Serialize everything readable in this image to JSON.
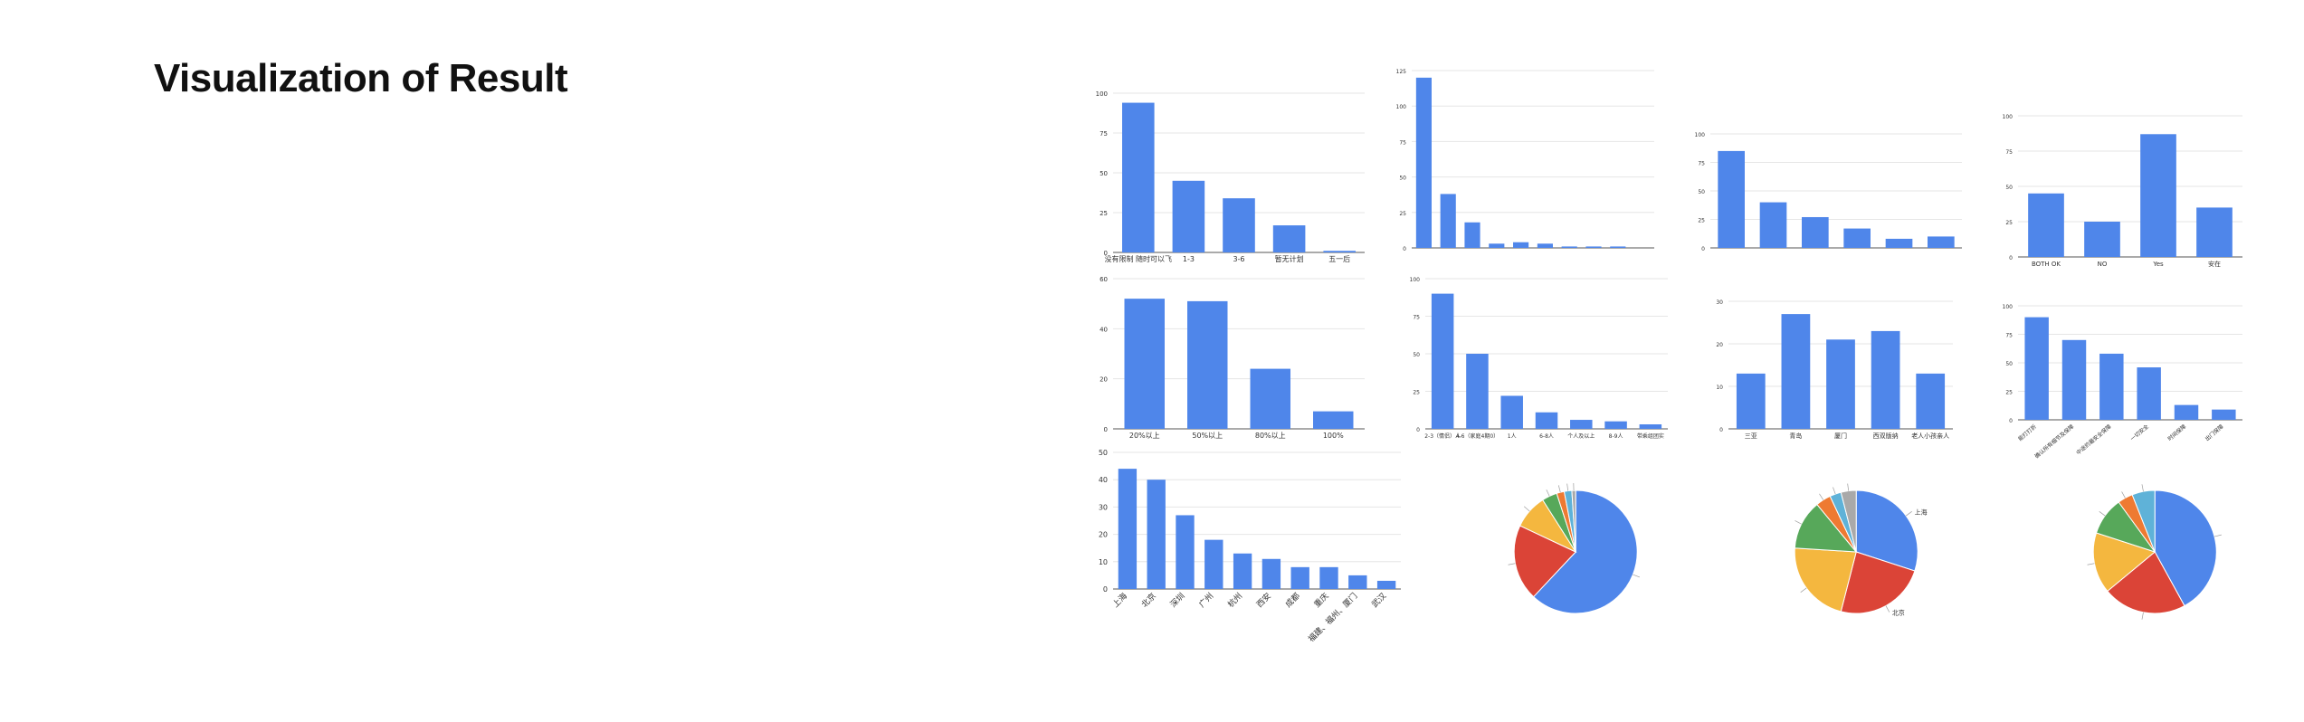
{
  "title": "Visualization of Result",
  "colors": {
    "bar": "#4f86ea",
    "grid": "#e6e6e6",
    "axis": "#555555",
    "text": "#333333"
  },
  "charts": [
    {
      "type": "bar",
      "ylim": [
        0,
        100
      ],
      "yticks": [
        0,
        25,
        50,
        75,
        100
      ],
      "categories": [
        "没有限制 随时可以飞",
        "1-3",
        "3-6",
        "暂无计划",
        "五一后"
      ],
      "values": [
        94,
        45,
        34,
        17,
        1
      ]
    },
    {
      "type": "bar",
      "ylim": [
        0,
        125
      ],
      "yticks": [
        0,
        25,
        50,
        75,
        100,
        125
      ],
      "categories": [
        "",
        "",
        "",
        "",
        "",
        "",
        "",
        "",
        "",
        ""
      ],
      "values": [
        120,
        38,
        18,
        3,
        4,
        3,
        1,
        1,
        1,
        0
      ]
    },
    {
      "type": "bar",
      "ylim": [
        0,
        100
      ],
      "yticks": [
        0,
        25,
        50,
        75,
        100
      ],
      "categories": [
        "",
        "",
        "",
        "",
        "",
        ""
      ],
      "values": [
        85,
        40,
        27,
        17,
        8,
        10
      ]
    },
    {
      "type": "bar",
      "ylim": [
        0,
        100
      ],
      "yticks": [
        0,
        25,
        50,
        75,
        100
      ],
      "categories": [
        "BOTH OK",
        "NO",
        "Yes",
        "安在"
      ],
      "values": [
        45,
        25,
        87,
        35
      ]
    },
    {
      "type": "bar",
      "ylim": [
        0,
        60
      ],
      "yticks": [
        0,
        20,
        40,
        60
      ],
      "categories": [
        "20%以上",
        "50%以上",
        "80%以上",
        "100%"
      ],
      "values": [
        52,
        51,
        24,
        7
      ]
    },
    {
      "type": "bar",
      "ylim": [
        0,
        100
      ],
      "yticks": [
        0,
        25,
        50,
        75,
        100
      ],
      "categories": [
        "2-3（情侣）人",
        "4-6（家庭4期0）",
        "1人",
        "6-8人",
        "个人及以上",
        "8-9人",
        "带乘组团实"
      ],
      "values": [
        90,
        50,
        22,
        11,
        6,
        5,
        3
      ]
    },
    {
      "type": "bar",
      "ylim": [
        0,
        30
      ],
      "yticks": [
        0,
        10,
        20,
        30
      ],
      "categories": [
        "三亚",
        "青岛",
        "厦门",
        "西双版纳",
        "老人小孩亲人"
      ],
      "values": [
        13,
        27,
        21,
        23,
        13
      ]
    },
    {
      "type": "bar",
      "ylim": [
        0,
        100
      ],
      "yticks": [
        0,
        25,
        50,
        75,
        100
      ],
      "categories": [
        "能打打折",
        "确认所有细节及保障",
        "中途的最安全保障",
        "一切安全",
        "时间保障",
        "出门保障"
      ],
      "values": [
        90,
        70,
        58,
        46,
        13,
        9
      ]
    },
    {
      "type": "bar",
      "ylim": [
        0,
        50
      ],
      "yticks": [
        0,
        10,
        20,
        30,
        40,
        50
      ],
      "categories": [
        "上海",
        "北京",
        "深圳",
        "广州",
        "杭州",
        "西安",
        "成都",
        "重庆",
        "福建、福州、厦门",
        "武汉"
      ],
      "values": [
        44,
        40,
        27,
        18,
        13,
        11,
        8,
        8,
        5,
        3
      ]
    },
    {
      "type": "pie",
      "labels": [
        "",
        "",
        "",
        "",
        "",
        "",
        ""
      ],
      "values": [
        62,
        20,
        9,
        4,
        2,
        2,
        1
      ]
    },
    {
      "type": "pie",
      "labels": [
        "上海",
        "北京",
        "",
        "",
        "",
        "",
        ""
      ],
      "values": [
        30,
        24,
        22,
        13,
        4,
        3,
        4
      ]
    },
    {
      "type": "pie",
      "labels": [
        "",
        "",
        "",
        "",
        "",
        "",
        ""
      ],
      "values": [
        42,
        22,
        16,
        10,
        4,
        6,
        0
      ]
    }
  ]
}
